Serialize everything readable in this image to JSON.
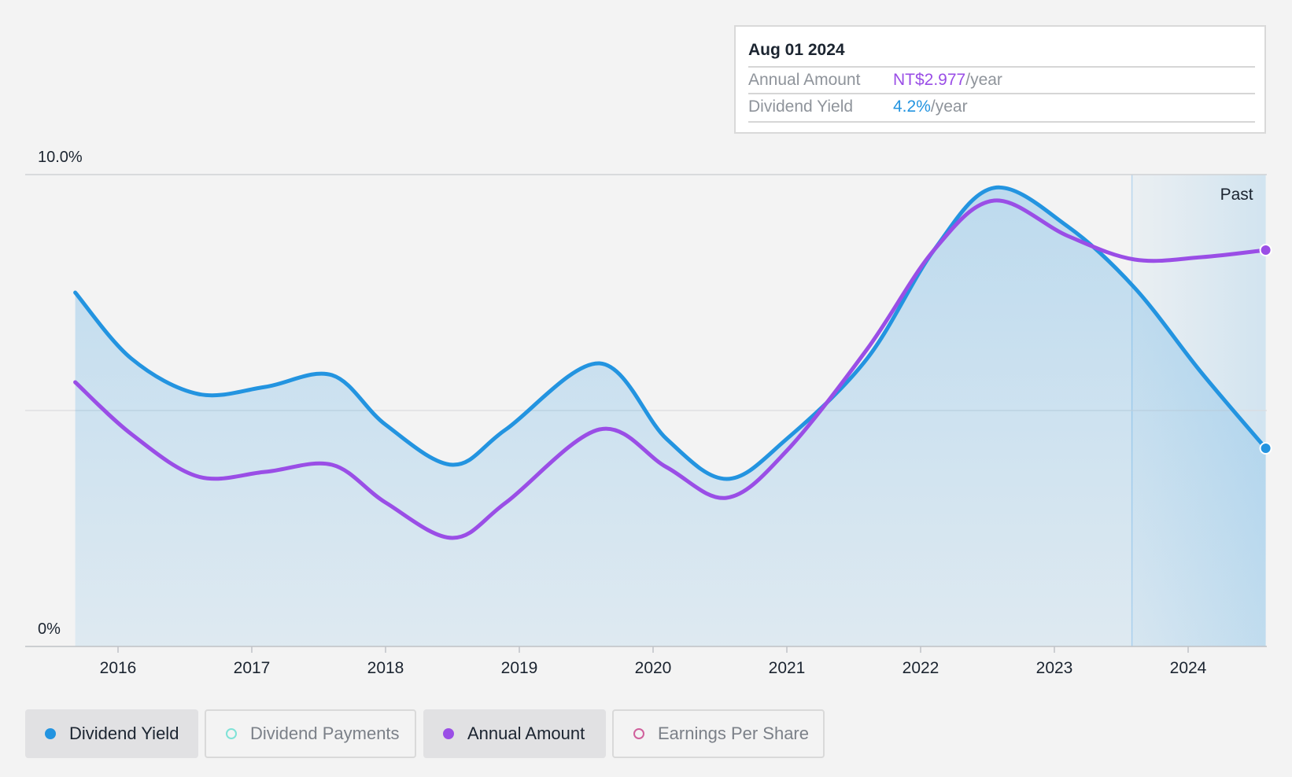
{
  "tooltip": {
    "date": "Aug 01 2024",
    "rows": [
      {
        "label": "Annual Amount",
        "value": "NT$2.977",
        "unit": "/year"
      },
      {
        "label": "Dividend Yield",
        "value": "4.2%",
        "unit": "/year"
      }
    ]
  },
  "legend": [
    {
      "label": "Dividend Yield",
      "active": true,
      "color": "#2394e0"
    },
    {
      "label": "Dividend Payments",
      "active": false,
      "color": "#7fe2d7"
    },
    {
      "label": "Annual Amount",
      "active": true,
      "color": "#9a4ee6"
    },
    {
      "label": "Earnings Per Share",
      "active": false,
      "color": "#d0609c"
    }
  ],
  "chart_data": {
    "type": "line",
    "title": "",
    "xlabel": "",
    "ylabel": "",
    "x_ticks": [
      "2016",
      "2017",
      "2018",
      "2019",
      "2020",
      "2021",
      "2022",
      "2023",
      "2024"
    ],
    "y_tick_labels": [
      "10.0%",
      "0%"
    ],
    "ylim": [
      0,
      10
    ],
    "xlim": [
      2015.68,
      2024.58
    ],
    "grid": true,
    "past_region": {
      "label": "Past",
      "from": 2023.58,
      "to": 2024.58
    },
    "series": [
      {
        "name": "Dividend Yield",
        "color": "#2394e0",
        "filled": true,
        "points": [
          [
            2015.68,
            7.5
          ],
          [
            2016.1,
            6.1
          ],
          [
            2016.6,
            5.35
          ],
          [
            2017.1,
            5.5
          ],
          [
            2017.6,
            5.75
          ],
          [
            2018.0,
            4.7
          ],
          [
            2018.5,
            3.85
          ],
          [
            2018.9,
            4.6
          ],
          [
            2019.6,
            6.0
          ],
          [
            2020.1,
            4.4
          ],
          [
            2020.55,
            3.55
          ],
          [
            2021.0,
            4.4
          ],
          [
            2021.6,
            6.1
          ],
          [
            2022.1,
            8.4
          ],
          [
            2022.55,
            9.72
          ],
          [
            2023.1,
            8.9
          ],
          [
            2023.6,
            7.6
          ],
          [
            2024.1,
            5.8
          ],
          [
            2024.58,
            4.2
          ]
        ]
      },
      {
        "name": "Annual Amount",
        "color": "#9a4ee6",
        "filled": false,
        "points": [
          [
            2015.68,
            5.6
          ],
          [
            2016.1,
            4.5
          ],
          [
            2016.6,
            3.6
          ],
          [
            2017.1,
            3.7
          ],
          [
            2017.6,
            3.85
          ],
          [
            2018.0,
            3.05
          ],
          [
            2018.5,
            2.3
          ],
          [
            2018.9,
            3.05
          ],
          [
            2019.6,
            4.6
          ],
          [
            2020.1,
            3.8
          ],
          [
            2020.55,
            3.15
          ],
          [
            2021.0,
            4.15
          ],
          [
            2021.6,
            6.3
          ],
          [
            2022.1,
            8.4
          ],
          [
            2022.55,
            9.45
          ],
          [
            2023.1,
            8.7
          ],
          [
            2023.6,
            8.2
          ],
          [
            2024.1,
            8.25
          ],
          [
            2024.58,
            8.4
          ]
        ]
      }
    ]
  }
}
